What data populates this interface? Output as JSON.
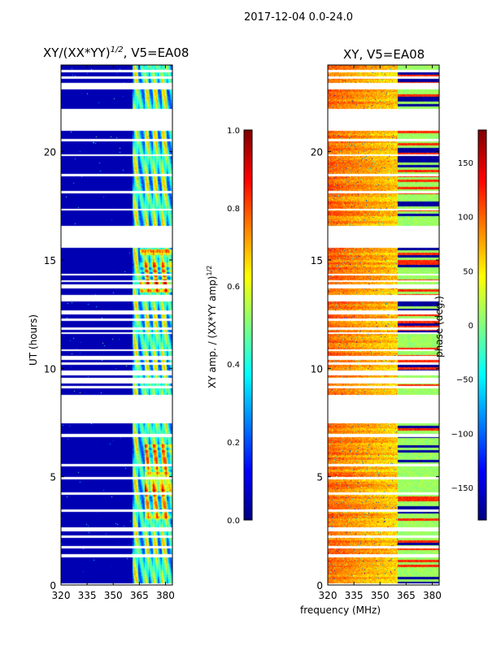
{
  "figure_title": "2017-12-04 0.0-24.0",
  "chart_data": [
    {
      "type": "heatmap",
      "title": "XY/(XX*YY)^1/2, V5=EA08",
      "title_main": "XY/(XX*YY)",
      "title_sup": "1/2",
      "title_rest": ", V5=EA08",
      "xlabel": "frequency (MHz)",
      "ylabel": "UT (hours)",
      "xlim": [
        320,
        384
      ],
      "ylim": [
        0,
        24
      ],
      "xticks": [
        320,
        335,
        350,
        365,
        380
      ],
      "yticks": [
        0,
        5,
        10,
        15,
        20
      ],
      "colorbar": {
        "label": "XY amp. / (XX*YY amp)^1/2",
        "label_main": "XY amp. / (XX*YY amp)",
        "label_sup": "1/2",
        "range": [
          0,
          1
        ],
        "ticks": [
          "0.0",
          "0.2",
          "0.4",
          "0.6",
          "0.8",
          "1.0"
        ],
        "cmap": "jet"
      },
      "gaps_hours": [
        [
          7.5,
          8.4
        ],
        [
          15.6,
          16.6
        ],
        [
          21.6,
          21.9
        ],
        [
          22.9,
          23.2
        ],
        [
          13.1,
          13.4
        ],
        [
          6.85,
          7.0
        ],
        [
          2.5,
          2.7
        ],
        [
          1.3,
          1.45
        ]
      ],
      "description_values": {
        "below_365MHz": 0.05,
        "above_362MHz": 0.45
      }
    },
    {
      "type": "heatmap",
      "title": "XY, V5=EA08",
      "xlabel": "frequency (MHz)",
      "ylabel": "",
      "xlim": [
        320,
        384
      ],
      "ylim": [
        0,
        24
      ],
      "xticks": [
        320,
        335,
        350,
        365,
        380
      ],
      "yticks": [
        0,
        5,
        10,
        15,
        20
      ],
      "colorbar": {
        "label": "phase (deg.)",
        "range": [
          -180,
          180
        ],
        "ticks": [
          "−150",
          "−100",
          "−50",
          "0",
          "50",
          "100",
          "150"
        ],
        "tick_values": [
          -150,
          -100,
          -50,
          0,
          50,
          100,
          150
        ],
        "cmap": "jet"
      },
      "gaps_hours": [
        [
          7.5,
          8.4
        ],
        [
          15.6,
          16.6
        ],
        [
          21.6,
          21.9
        ],
        [
          22.9,
          23.2
        ],
        [
          13.1,
          13.4
        ],
        [
          6.85,
          7.0
        ],
        [
          2.5,
          2.7
        ],
        [
          1.3,
          1.45
        ]
      ]
    }
  ],
  "shared_xlabel": "frequency (MHz)"
}
